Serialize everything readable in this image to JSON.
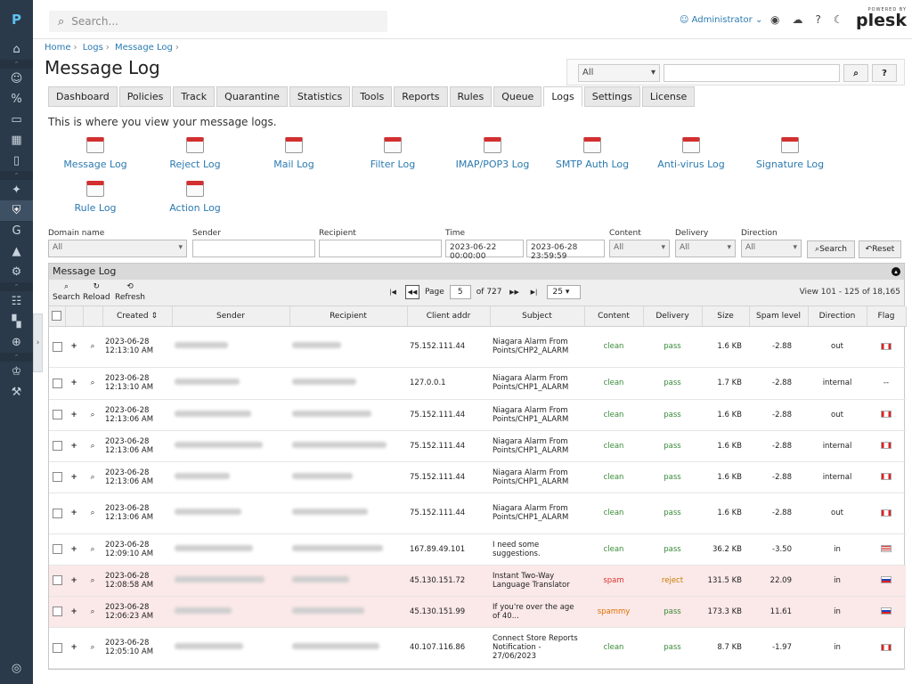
{
  "nav": {
    "logo": "P",
    "icons": [
      "home-icon",
      "users-icon",
      "percent-icon",
      "monitor-icon",
      "grid-icon",
      "book-icon",
      "gear-icon",
      "shield-icon",
      "g-icon",
      "bird-icon",
      "settings-icon",
      "sliders-icon",
      "apps-icon",
      "search-doc-icon",
      "crown-icon",
      "wrench-icon",
      "compass-icon"
    ]
  },
  "topbar": {
    "search_placeholder": "Search...",
    "user": "Administrator",
    "powered": "POWERED BY",
    "brand": "plesk"
  },
  "breadcrumbs": [
    "Home",
    "Logs",
    "Message Log"
  ],
  "title": "Message Log",
  "topsearch": {
    "select": "All",
    "search_btn": "⌕",
    "help_btn": "?"
  },
  "tabs": [
    "Dashboard",
    "Policies",
    "Track",
    "Quarantine",
    "Statistics",
    "Tools",
    "Reports",
    "Rules",
    "Queue",
    "Logs",
    "Settings",
    "License"
  ],
  "active_tab": "Logs",
  "intro": "This is where you view your message logs.",
  "logs": [
    "Message Log",
    "Reject Log",
    "Mail Log",
    "Filter Log",
    "IMAP/POP3 Log",
    "SMTP Auth Log",
    "Anti-virus Log",
    "Signature Log",
    "Rule Log",
    "Action Log"
  ],
  "filters": {
    "domain_label": "Domain name",
    "domain_value": "All",
    "sender_label": "Sender",
    "recipient_label": "Recipient",
    "time_label": "Time",
    "time_from": "2023-06-22 00:00:00",
    "time_to": "2023-06-28 23:59:59",
    "content_label": "Content",
    "content_value": "All",
    "delivery_label": "Delivery",
    "delivery_value": "All",
    "direction_label": "Direction",
    "direction_value": "All",
    "search_btn": "Search",
    "reset_btn": "Reset"
  },
  "grid": {
    "title": "Message Log",
    "search": "Search",
    "reload": "Reload",
    "refresh": "Refresh",
    "page_label": "Page",
    "page": "5",
    "of": "of 727",
    "per_page": "25",
    "view": "View 101 - 125 of 18,165",
    "columns": [
      "Created",
      "Sender",
      "Recipient",
      "Client addr",
      "Subject",
      "Content",
      "Delivery",
      "Size",
      "Spam level",
      "Direction",
      "Flag"
    ]
  },
  "rows": [
    {
      "date": "2023-06-28",
      "time": "12:13:10 AM",
      "ip": "75.152.111.44",
      "subject": "Niagara Alarm From Points/CHP2_ALARM",
      "content": "clean",
      "delivery": "pass",
      "size": "1.6 KB",
      "spam": "-2.88",
      "direction": "out",
      "flag": "ca",
      "spamrow": false
    },
    {
      "date": "2023-06-28",
      "time": "12:13:10 AM",
      "ip": "127.0.0.1",
      "subject": "Niagara Alarm From Points/CHP1_ALARM",
      "content": "clean",
      "delivery": "pass",
      "size": "1.7 KB",
      "spam": "-2.88",
      "direction": "internal",
      "flag": "none",
      "spamrow": false
    },
    {
      "date": "2023-06-28",
      "time": "12:13:06 AM",
      "ip": "75.152.111.44",
      "subject": "Niagara Alarm From Points/CHP1_ALARM",
      "content": "clean",
      "delivery": "pass",
      "size": "1.6 KB",
      "spam": "-2.88",
      "direction": "out",
      "flag": "ca",
      "spamrow": false
    },
    {
      "date": "2023-06-28",
      "time": "12:13:06 AM",
      "ip": "75.152.111.44",
      "subject": "Niagara Alarm From Points/CHP1_ALARM",
      "content": "clean",
      "delivery": "pass",
      "size": "1.6 KB",
      "spam": "-2.88",
      "direction": "internal",
      "flag": "ca",
      "spamrow": false
    },
    {
      "date": "2023-06-28",
      "time": "12:13:06 AM",
      "ip": "75.152.111.44",
      "subject": "Niagara Alarm From Points/CHP1_ALARM",
      "content": "clean",
      "delivery": "pass",
      "size": "1.6 KB",
      "spam": "-2.88",
      "direction": "internal",
      "flag": "ca",
      "spamrow": false
    },
    {
      "date": "2023-06-28",
      "time": "12:13:06 AM",
      "ip": "75.152.111.44",
      "subject": "Niagara Alarm From Points/CHP1_ALARM",
      "content": "clean",
      "delivery": "pass",
      "size": "1.6 KB",
      "spam": "-2.88",
      "direction": "out",
      "flag": "ca",
      "spamrow": false
    },
    {
      "date": "2023-06-28",
      "time": "12:09:10 AM",
      "ip": "167.89.49.101",
      "subject": "I need some suggestions.",
      "content": "clean",
      "delivery": "pass",
      "size": "36.2 KB",
      "spam": "-3.50",
      "direction": "in",
      "flag": "us",
      "spamrow": false
    },
    {
      "date": "2023-06-28",
      "time": "12:08:58 AM",
      "ip": "45.130.151.72",
      "subject": "Instant Two-Way Language Translator",
      "content": "spam",
      "delivery": "reject",
      "size": "131.5 KB",
      "spam": "22.09",
      "direction": "in",
      "flag": "ru",
      "spamrow": true
    },
    {
      "date": "2023-06-28",
      "time": "12:06:23 AM",
      "ip": "45.130.151.99",
      "subject": "If you're over the age of 40...",
      "content": "spammy",
      "delivery": "pass",
      "size": "173.3 KB",
      "spam": "11.61",
      "direction": "in",
      "flag": "ru",
      "spamrow": true
    },
    {
      "date": "2023-06-28",
      "time": "12:05:10 AM",
      "ip": "40.107.116.86",
      "subject": "Connect Store Reports Notification - 27/06/2023",
      "content": "clean",
      "delivery": "pass",
      "size": "8.7 KB",
      "spam": "-1.97",
      "direction": "in",
      "flag": "ca",
      "spamrow": false
    }
  ]
}
